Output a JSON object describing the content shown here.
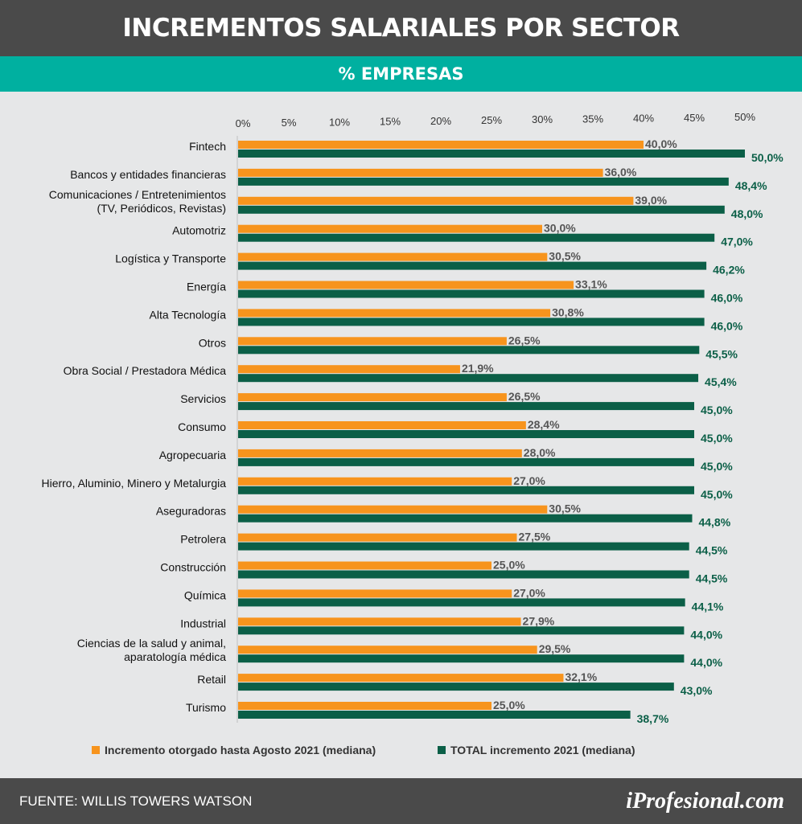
{
  "header": {
    "title": "INCREMENTOS SALARIALES POR SECTOR"
  },
  "subheader": {
    "title": "% EMPRESAS"
  },
  "colors": {
    "orange": "#f7941d",
    "green": "#0b5f47",
    "header_bg": "#4a4a4a",
    "teal": "#00b0a0",
    "background": "#e6e7e8"
  },
  "chart_data": {
    "type": "bar",
    "orientation": "horizontal",
    "title": "INCREMENTOS SALARIALES POR SECTOR",
    "subtitle": "% EMPRESAS",
    "xlim": [
      0,
      50
    ],
    "x_ticks": [
      "0%",
      "5%",
      "10%",
      "15%",
      "20%",
      "25%",
      "30%",
      "35%",
      "40%",
      "45%",
      "50%"
    ],
    "categories": [
      "Fintech",
      "Bancos y entidades financieras",
      "Comunicaciones / Entretenimientos|(TV, Periódicos, Revistas)",
      "Automotriz",
      "Logística y Transporte",
      "Energía",
      "Alta Tecnología",
      "Otros",
      "Obra Social / Prestadora Médica",
      "Servicios",
      "Consumo",
      "Agropecuaria",
      "Hierro, Aluminio, Minero y Metalurgia",
      "Aseguradoras",
      "Petrolera",
      "Construcción",
      "Química",
      "Industrial",
      "Ciencias de la salud y animal,|aparatología médica",
      "Retail",
      "Turismo"
    ],
    "series": [
      {
        "name": "Incremento otorgado hasta Agosto 2021 (mediana)",
        "color": "#f7941d",
        "values": [
          40.0,
          36.0,
          39.0,
          30.0,
          30.5,
          33.1,
          30.8,
          26.5,
          21.9,
          26.5,
          28.4,
          28.0,
          27.0,
          30.5,
          27.5,
          25.0,
          27.0,
          27.9,
          29.5,
          32.1,
          25.0
        ],
        "labels": [
          "40,0%",
          "36,0%",
          "39,0%",
          "30,0%",
          "30,5%",
          "33,1%",
          "30,8%",
          "26,5%",
          "21,9%",
          "26,5%",
          "28,4%",
          "28,0%",
          "27,0%",
          "30,5%",
          "27,5%",
          "25,0%",
          "27,0%",
          "27,9%",
          "29,5%",
          "32,1%",
          "25,0%"
        ]
      },
      {
        "name": "TOTAL incremento 2021 (mediana)",
        "color": "#0b5f47",
        "values": [
          50.0,
          48.4,
          48.0,
          47.0,
          46.2,
          46.0,
          46.0,
          45.5,
          45.4,
          45.0,
          45.0,
          45.0,
          45.0,
          44.8,
          44.5,
          44.5,
          44.1,
          44.0,
          44.0,
          43.0,
          38.7
        ],
        "labels": [
          "50,0%",
          "48,4%",
          "48,0%",
          "47,0%",
          "46,2%",
          "46,0%",
          "46,0%",
          "45,5%",
          "45,4%",
          "45,0%",
          "45,0%",
          "45,0%",
          "45,0%",
          "44,8%",
          "44,5%",
          "44,5%",
          "44,1%",
          "44,0%",
          "44,0%",
          "43,0%",
          "38,7%"
        ]
      }
    ]
  },
  "legend": {
    "series_1": "Incremento otorgado hasta Agosto 2021 (mediana)",
    "series_2": "TOTAL incremento 2021 (mediana)"
  },
  "footer": {
    "source": "FUENTE:  WILLIS TOWERS WATSON",
    "brand": "iProfesional.com"
  }
}
